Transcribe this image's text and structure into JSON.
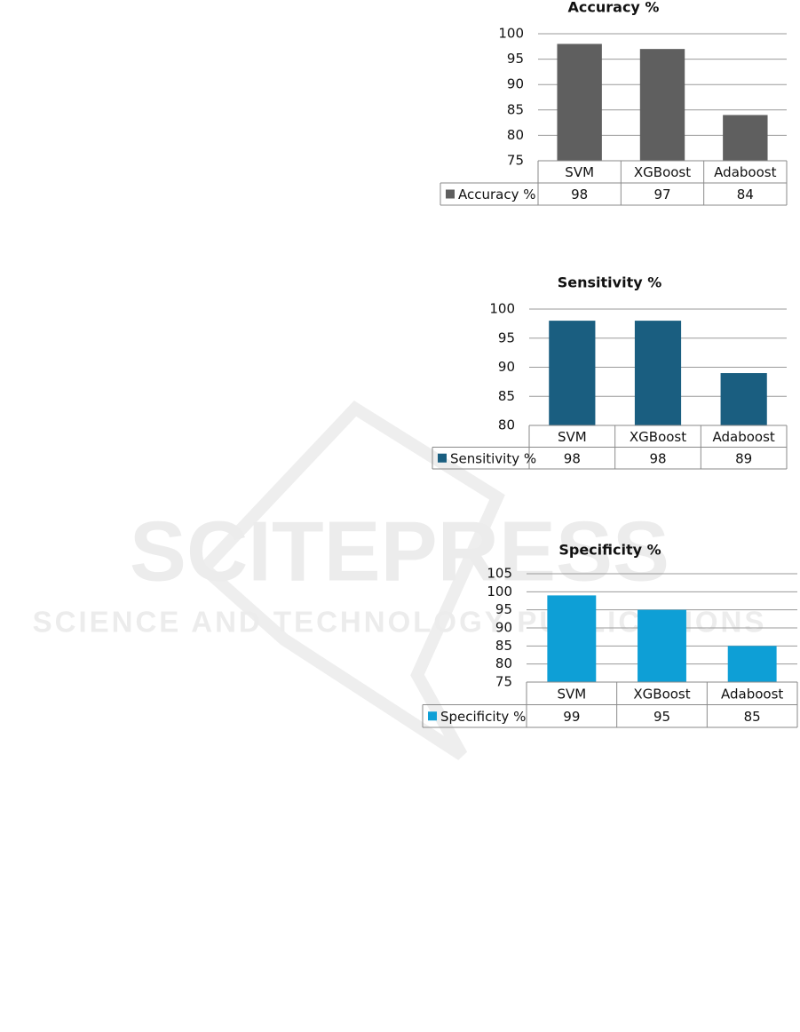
{
  "chart_data": [
    {
      "type": "bar",
      "title": "Accuracy %",
      "categories": [
        "SVM",
        "XGBoost",
        "Adaboost"
      ],
      "series": [
        {
          "name": "Accuracy %",
          "color": "#5f5f5f",
          "values": [
            98,
            97,
            84
          ]
        }
      ],
      "ylim": [
        75,
        100
      ],
      "yticks": [
        75,
        80,
        85,
        90,
        95,
        100
      ],
      "grid": true,
      "data_table": true
    },
    {
      "type": "bar",
      "title": "Sensitivity %",
      "categories": [
        "SVM",
        "XGBoost",
        "Adaboost"
      ],
      "series": [
        {
          "name": "Sensitivity %",
          "color": "#1a5e80",
          "values": [
            98,
            98,
            89
          ]
        }
      ],
      "ylim": [
        80,
        100
      ],
      "yticks": [
        80,
        85,
        90,
        95,
        100
      ],
      "grid": true,
      "data_table": true
    },
    {
      "type": "bar",
      "title": "Specificity %",
      "categories": [
        "SVM",
        "XGBoost",
        "Adaboost"
      ],
      "series": [
        {
          "name": "Specificity %",
          "color": "#0e9fd6",
          "values": [
            99,
            95,
            85
          ]
        }
      ],
      "ylim": [
        75,
        105
      ],
      "yticks": [
        75,
        80,
        85,
        90,
        95,
        100,
        105
      ],
      "grid": true,
      "data_table": true
    }
  ],
  "watermark": {
    "title": "SCITEPRESS",
    "subtitle": "SCIENCE AND TECHNOLOGY PUBLICATIONS"
  }
}
